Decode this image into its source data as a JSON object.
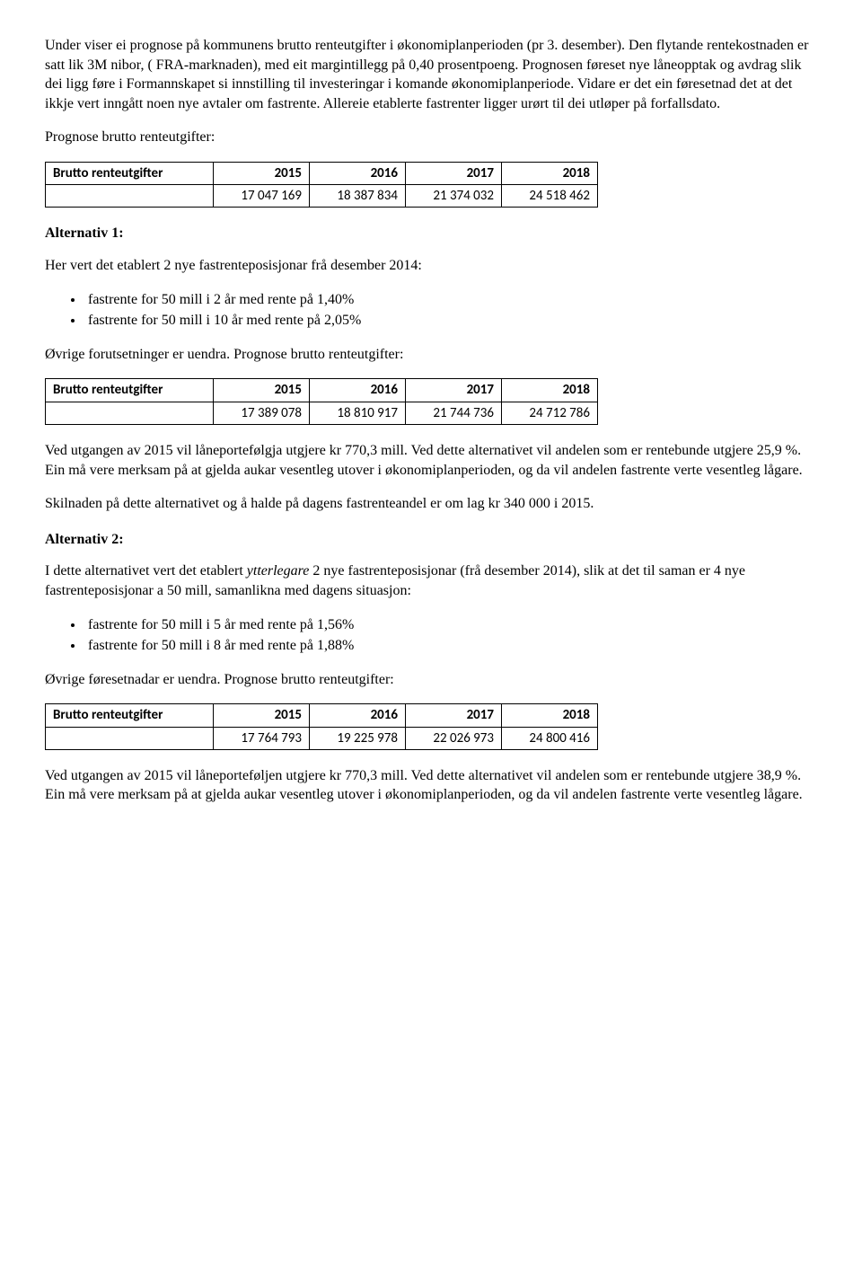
{
  "intro": {
    "para1": "Under viser ei prognose på kommunens brutto renteutgifter i økonomiplanperioden (pr 3. desember). Den flytande rentekostnaden er satt lik 3M nibor, ( FRA-marknaden), med eit margintillegg på 0,40 prosentpoeng. Prognosen føreset nye låneopptak og avdrag slik dei ligg føre i  Formannskapet si innstilling til investeringar i komande økonomiplanperiode. Vidare er det ein føresetnad det at det ikkje vert inngått noen nye avtaler om fastrente. Allereie etablerte fastrenter ligger urørt til dei utløper på forfallsdato.",
    "para2": "Prognose brutto renteutgifter:"
  },
  "table0": {
    "header_label": "Brutto renteutgifter",
    "years": [
      "2015",
      "2016",
      "2017",
      "2018"
    ],
    "values": [
      "17 047 169",
      "18 387 834",
      "21 374 032",
      "24 518 462"
    ]
  },
  "alt1": {
    "heading": "Alternativ 1:",
    "para1": "Her vert det etablert 2 nye fastrenteposisjonar frå desember 2014:",
    "bullets": [
      "fastrente for 50 mill i 2 år med rente på 1,40%",
      "fastrente for 50 mill i 10 år med rente på 2,05%"
    ],
    "para2": "Øvrige forutsetninger er uendra. Prognose brutto renteutgifter:",
    "table": {
      "header_label": "Brutto renteutgifter",
      "years": [
        "2015",
        "2016",
        "2017",
        "2018"
      ],
      "values": [
        "17 389 078",
        "18 810 917",
        "21 744 736",
        "24 712 786"
      ]
    },
    "para3": "Ved utgangen av 2015 vil låneportefølgja utgjere kr 770,3 mill. Ved dette alternativet vil andelen som er rentebunde utgjere 25,9 %. Ein må vere merksam på at gjelda aukar vesentleg utover i økonomiplanperioden, og da vil andelen fastrente verte vesentleg lågare.",
    "para4": "Skilnaden på dette alternativet og å halde på dagens fastrenteandel er om lag kr 340 000 i 2015."
  },
  "alt2": {
    "heading": "Alternativ 2:",
    "para1_prefix": "I dette alternativet vert det etablert ",
    "para1_italic": "ytterlegare",
    "para1_suffix": " 2 nye fastrenteposisjonar (frå desember 2014), slik at det til saman er 4 nye fastrenteposisjonar a 50 mill, samanlikna med dagens situasjon:",
    "bullets": [
      "fastrente for 50 mill i 5 år med rente på 1,56%",
      "fastrente for 50 mill i 8 år med rente på 1,88%"
    ],
    "para2": "Øvrige føresetnadar er uendra. Prognose brutto renteutgifter:",
    "table": {
      "header_label": "Brutto renteutgifter",
      "years": [
        "2015",
        "2016",
        "2017",
        "2018"
      ],
      "values": [
        "17 764 793",
        "19 225 978",
        "22 026 973",
        "24 800 416"
      ]
    },
    "para3": "Ved utgangen av 2015 vil låneporteføljen utgjere kr 770,3 mill. Ved dette alternativet vil andelen som er rentebunde utgjere 38,9 %. Ein må vere merksam på at gjelda aukar vesentleg utover i økonomiplanperioden, og da vil andelen fastrente verte vesentleg lågare."
  }
}
